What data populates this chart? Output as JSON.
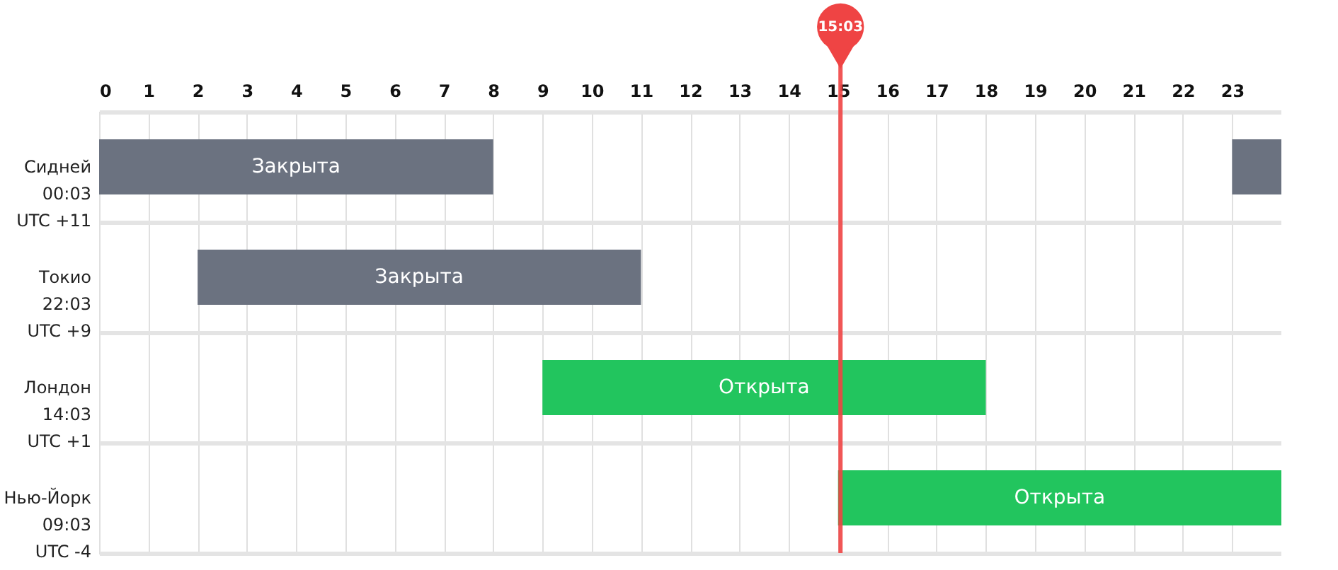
{
  "chart_data": {
    "type": "bar",
    "orientation": "horizontal",
    "categories": [
      "Сидней\n00:03\nUTC +11",
      "Токио\n22:03\nUTC +9",
      "Лондон\n14:03\nUTC +1",
      "Нью-Йорк\n09:03\nUTC -4"
    ],
    "series": [
      {
        "values": [
          8,
          9,
          9,
          9
        ],
        "base": [
          0,
          2,
          9,
          15
        ],
        "colors": [
          "#6b7280",
          "#6b7280",
          "#22c55e",
          "#22c55e"
        ],
        "value_labels": [
          "Закрыта",
          "Закрыта",
          "Открыта",
          "Открыта"
        ]
      },
      {
        "values": [
          1,
          null,
          null,
          null
        ],
        "base": [
          23,
          null,
          null,
          null
        ],
        "colors": [
          "#6b7280",
          null,
          null,
          null
        ],
        "value_labels": [
          null,
          null,
          null,
          null
        ]
      }
    ],
    "xlim": [
      0,
      24
    ],
    "xticks": [
      0,
      1,
      2,
      3,
      4,
      5,
      6,
      7,
      8,
      9,
      10,
      11,
      12,
      13,
      14,
      15,
      16,
      17,
      18,
      19,
      20,
      21,
      22,
      23
    ],
    "ref_lines": [
      {
        "axis": "x",
        "value": 15.05,
        "label": "15:03",
        "color": "#ef4444"
      }
    ],
    "grid": true
  }
}
